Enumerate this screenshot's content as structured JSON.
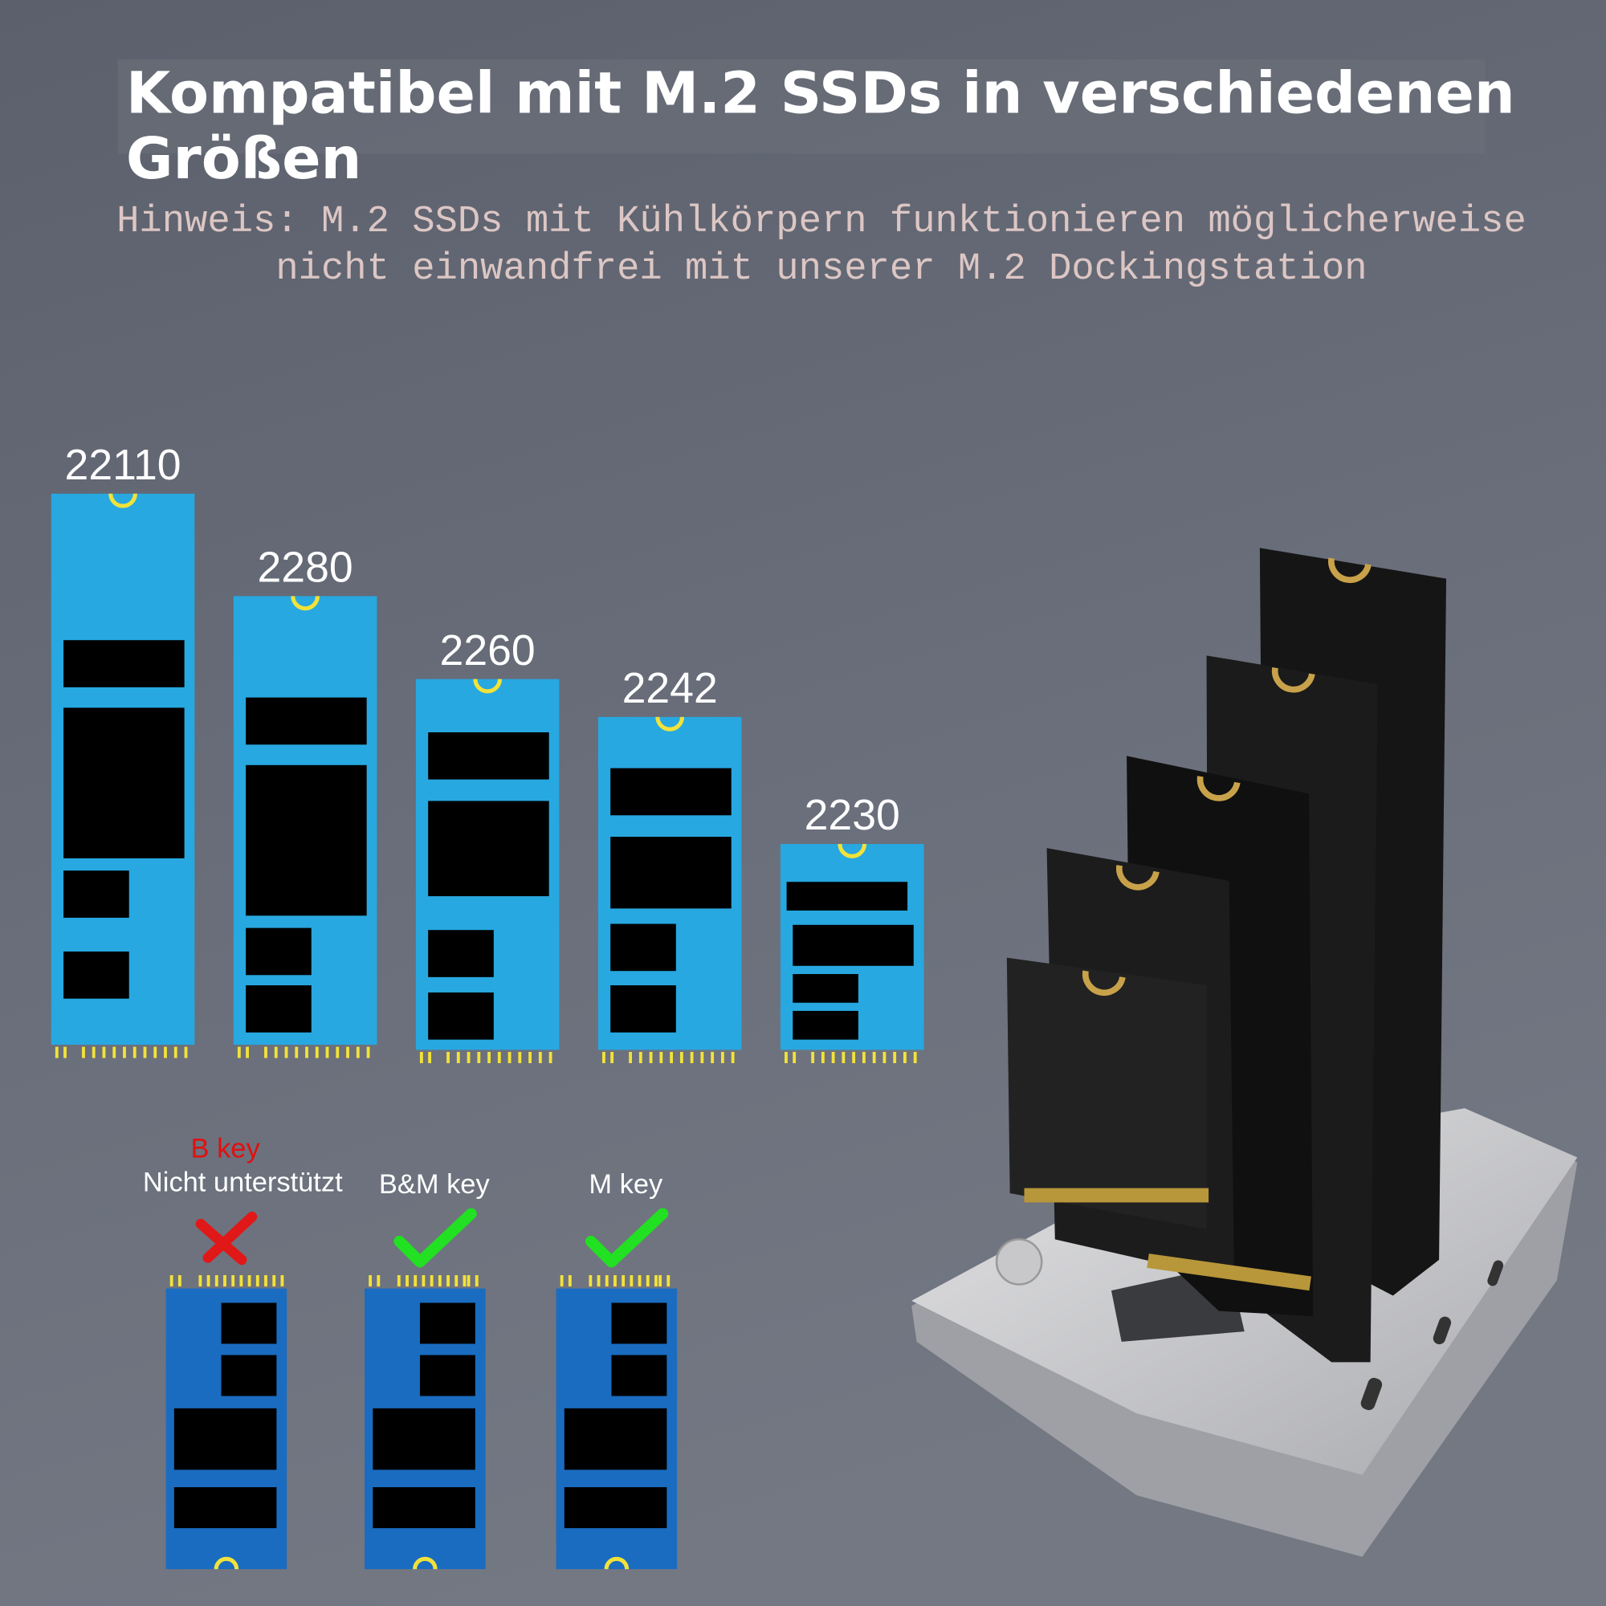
{
  "header": {
    "title_line1": "Kompatibel mit M.2 SSDs in verschiedenen",
    "title_line2": "Größen",
    "note_line1": "Hinweis: M.2 SSDs mit Kühlkörpern funktionieren möglicherweise",
    "note_line2": "nicht einwandfrei mit unserer M.2 Dockingstation"
  },
  "sizes": [
    "22110",
    "2280",
    "2260",
    "2242",
    "2230"
  ],
  "keys": [
    {
      "label": "B key",
      "sublabel": "Nicht unterstützt",
      "supported": false
    },
    {
      "label": "B&M key",
      "supported": true
    },
    {
      "label": "M key",
      "supported": true
    }
  ]
}
